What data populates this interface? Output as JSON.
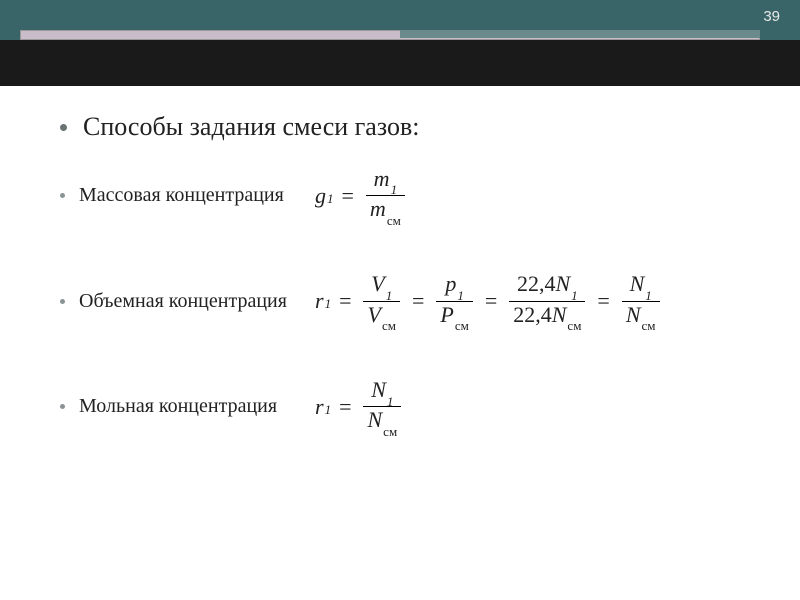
{
  "page_number": "39",
  "heading": "Способы задания смеси газов:",
  "items": {
    "mass": {
      "label": "Массовая концентрация"
    },
    "volume": {
      "label": "Объемная концентрация"
    },
    "molar": {
      "label": "Мольная концентрация"
    }
  },
  "style": {
    "banner_top_color": "#3a6568",
    "banner_bottom_color": "#1a1a1a",
    "accent_color": "#c9bdc9",
    "heading_fontsize": 26,
    "label_fontsize": 20,
    "formula_fontsize": 22,
    "text_color": "#222222",
    "bullet_color": "#6a7373"
  },
  "formulas": {
    "mass": {
      "lhs": {
        "var": "g",
        "sub": "1"
      },
      "rhs": [
        {
          "num": {
            "var": "m",
            "sub": "1"
          },
          "den": {
            "var": "m",
            "sub": "см"
          }
        }
      ]
    },
    "volume": {
      "lhs": {
        "var": "r",
        "sub": "1"
      },
      "rhs": [
        {
          "num": {
            "var": "V",
            "sub": "1"
          },
          "den": {
            "var": "V",
            "sub": "см"
          }
        },
        {
          "num": {
            "var": "p",
            "sub": "1"
          },
          "den": {
            "var": "P",
            "sub": "см"
          }
        },
        {
          "num": {
            "coef": "22,4",
            "var": "N",
            "sub": "1"
          },
          "den": {
            "coef": "22,4",
            "var": "N",
            "sub": "см"
          }
        },
        {
          "num": {
            "var": "N",
            "sub": "1"
          },
          "den": {
            "var": "N",
            "sub": "см"
          }
        }
      ]
    },
    "molar": {
      "lhs": {
        "var": "r",
        "sub": "1"
      },
      "rhs": [
        {
          "num": {
            "var": "N",
            "sub": "1"
          },
          "den": {
            "var": "N",
            "sub": "см"
          }
        }
      ]
    }
  }
}
